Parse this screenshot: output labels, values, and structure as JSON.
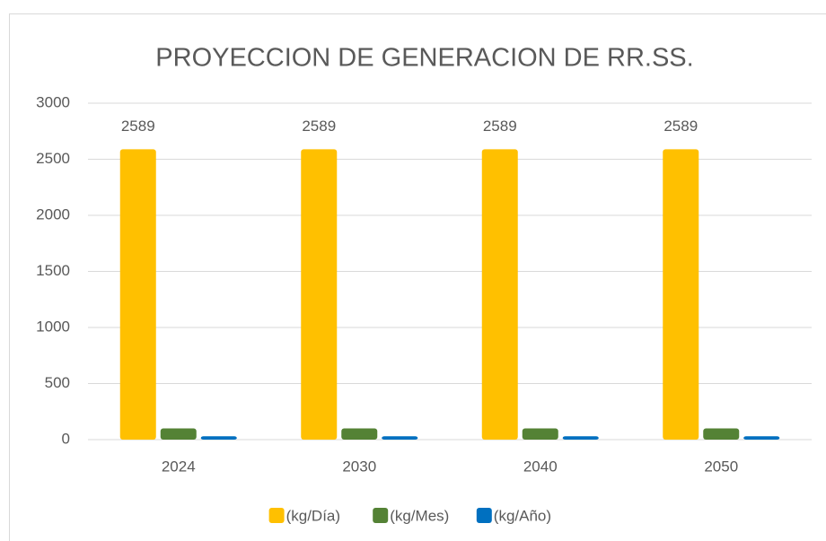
{
  "chart_data": {
    "type": "bar",
    "title": "PROYECCION DE GENERACION DE RR.SS.",
    "categories": [
      "2024",
      "2030",
      "2040",
      "2050"
    ],
    "series": [
      {
        "name": "(kg/Día)",
        "color": "#ffc000",
        "values": [
          2589,
          2589,
          2589,
          2589
        ]
      },
      {
        "name": "(kg/Mes)",
        "color": "#548235",
        "values": [
          100,
          100,
          100,
          100
        ]
      },
      {
        "name": "(kg/Año)",
        "color": "#0070c0",
        "values": [
          30,
          30,
          30,
          30
        ]
      }
    ],
    "ylim": [
      0,
      3000
    ],
    "yticks": [
      0,
      500,
      1000,
      1500,
      2000,
      2500,
      3000
    ],
    "grid": true,
    "legend": "bottom"
  }
}
